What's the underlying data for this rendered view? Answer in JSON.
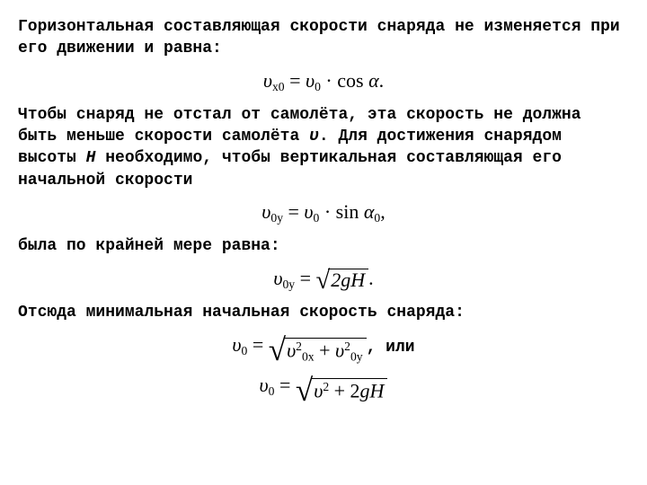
{
  "p1": "Горизонтальная составляющая скорости снаряда не изменяется при его движении и равна:",
  "p2a": "Чтобы снаряд не отстал от самолёта, эта скорость не должна быть меньше скорости самолёта ",
  "p2var": "υ",
  "p2b": ". Для достижения снарядом высоты ",
  "p2var2": "H",
  "p2c": " необходимо, чтобы вертикальная составляющая его начальной скорости",
  "p3": "была по крайней мере равна:",
  "p4": "Отсюда минимальная начальная скорость снаряда:",
  "f1": {
    "v": "υ",
    "sub_x0": "x0",
    "eq": " = ",
    "v2": "υ",
    "sub_0": "0",
    "dot": " · ",
    "cos": "cos",
    "alpha": "α",
    "period": "."
  },
  "f2": {
    "v": "υ",
    "sub_0y": "0y",
    "eq": " = ",
    "v2": "υ",
    "sub_0": "0",
    "dot": " · ",
    "sin": "sin",
    "alpha": "α",
    "sub_a0": "0",
    "comma": ","
  },
  "f3": {
    "v": "υ",
    "sub_0y": "0y",
    "eq": " = ",
    "inside": "2gH",
    "period": "."
  },
  "f4": {
    "v": "υ",
    "sub_0": "0",
    "eq": " = ",
    "v0x": "υ",
    "v0x_sub": "0x",
    "sq": "2",
    "plus": " + ",
    "v0y": "υ",
    "v0y_sub": "0y",
    "trail": ", или"
  },
  "f5": {
    "v": "υ",
    "sub_0": "0",
    "eq": " = ",
    "v2": "υ",
    "sq": "2",
    "plus": " + 2",
    "g": "g",
    "H": "H"
  },
  "colors": {
    "text": "#000000",
    "bg": "#ffffff"
  }
}
